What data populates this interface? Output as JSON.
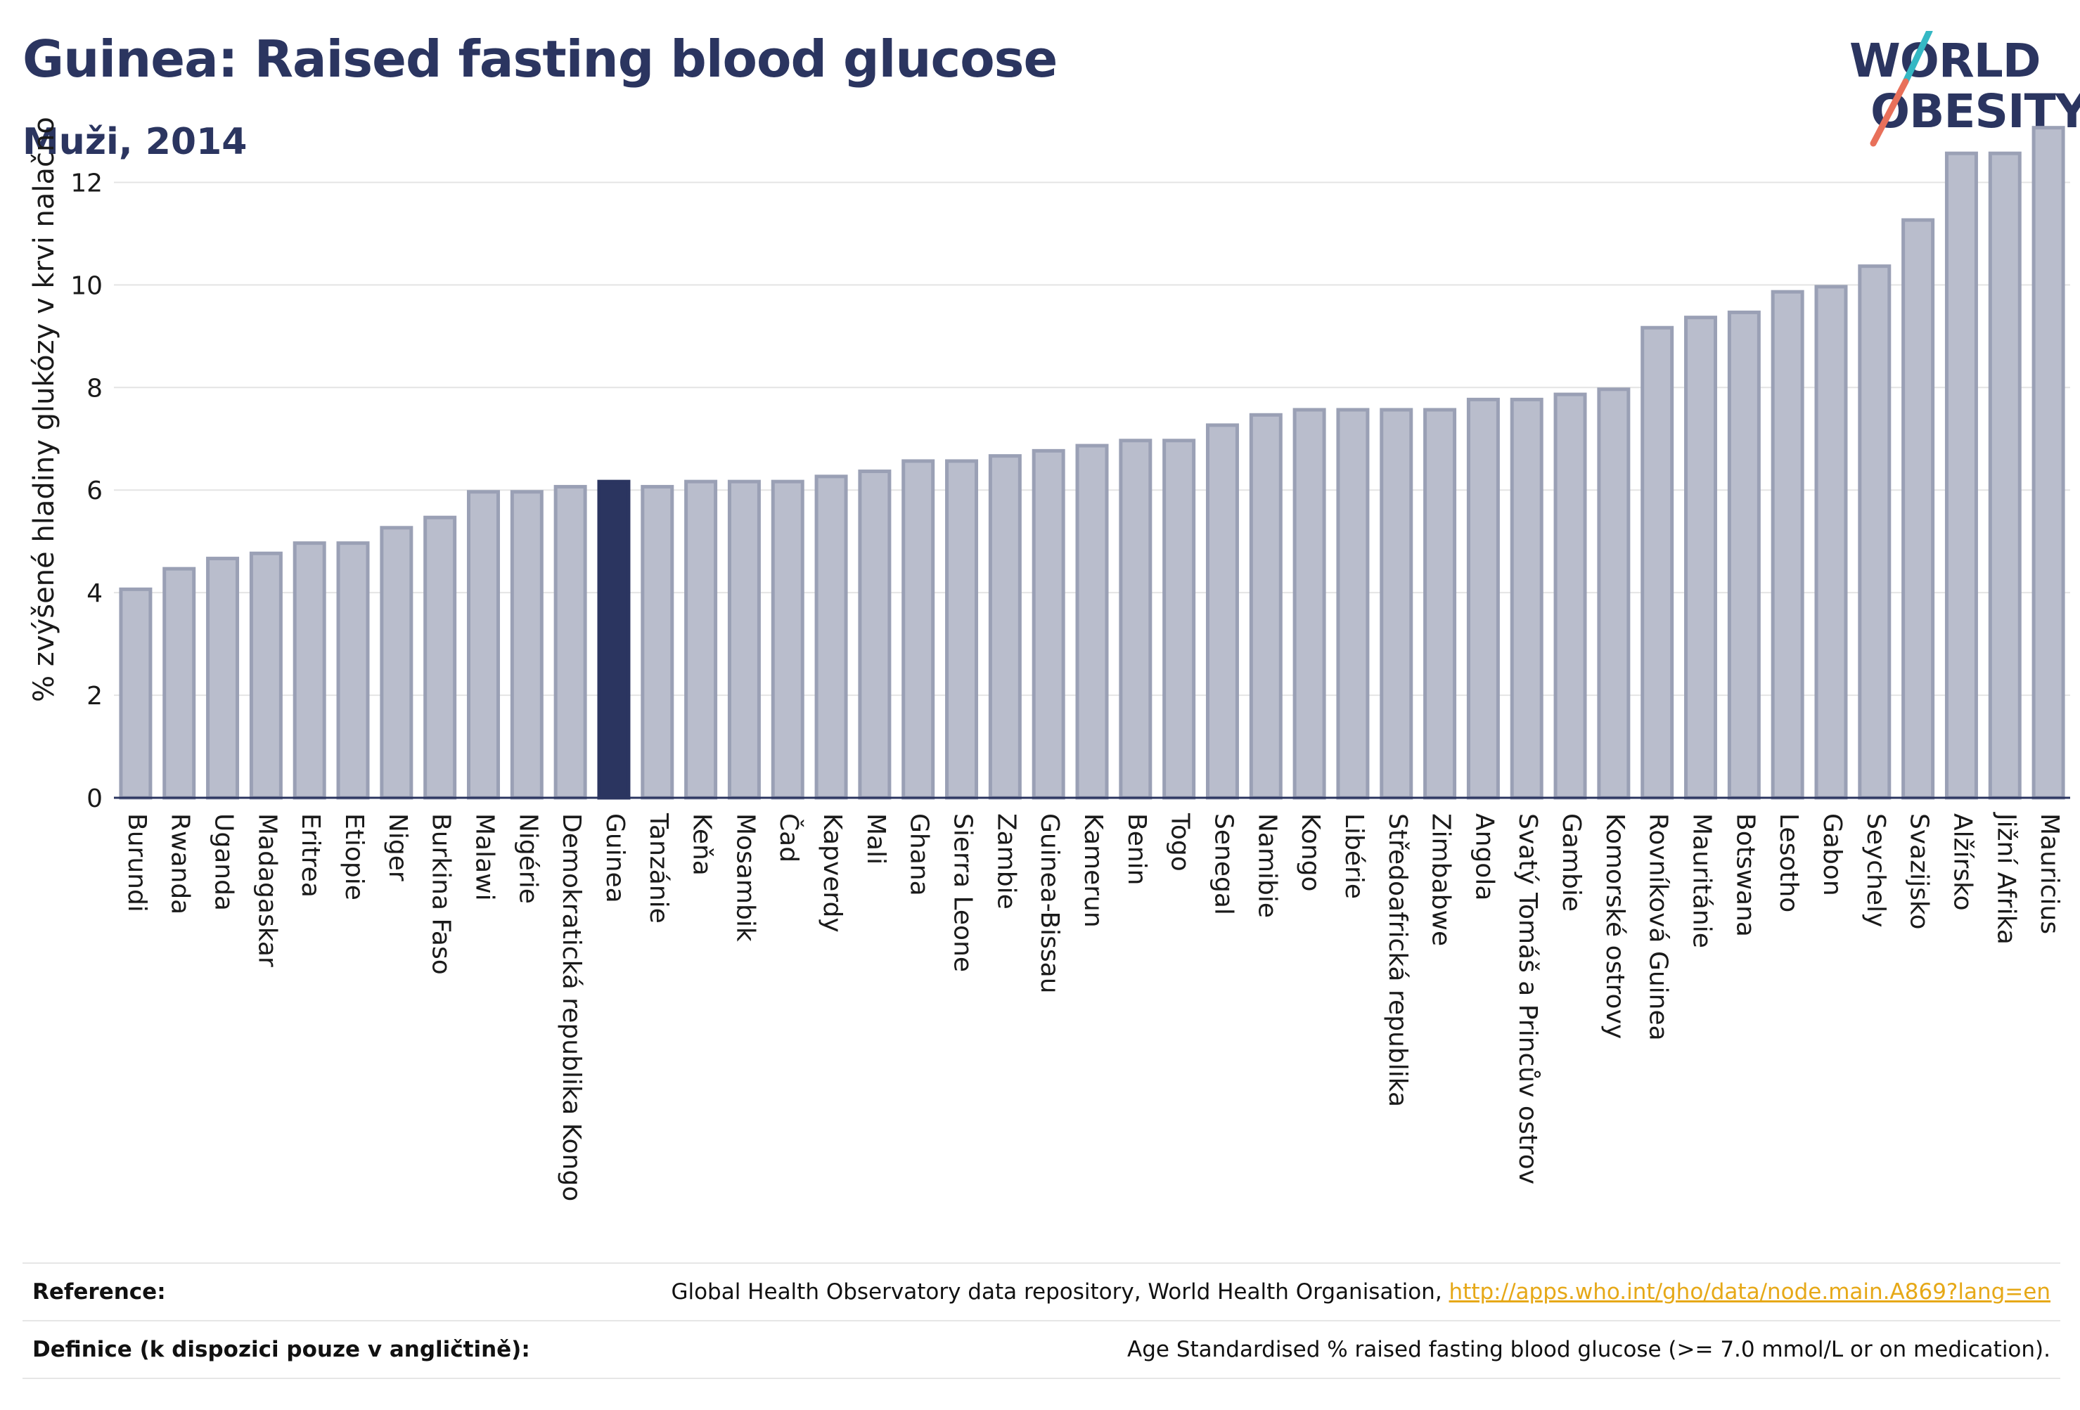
{
  "header": {
    "title": "Guinea: Raised fasting blood glucose",
    "subtitle": "Muži, 2014"
  },
  "logo": {
    "line1": "WORLD",
    "line2": "OBESITY",
    "colors": {
      "text": "#2b3560",
      "slash_top": "#35b8c4",
      "slash_bottom": "#e8705a"
    }
  },
  "chart_data": {
    "type": "bar",
    "title": "Guinea: Raised fasting blood glucose",
    "subtitle": "Muži, 2014",
    "xlabel": "",
    "ylabel": "% zvýšené hladiny glukózy v krvi nalačno",
    "ylim": [
      0,
      13.5
    ],
    "yticks": [
      0,
      2,
      4,
      6,
      8,
      10,
      12
    ],
    "grid": true,
    "highlight": "Guinea",
    "colors": {
      "bar": "#b9bdcc",
      "bar_border": "#9aa0b5",
      "highlight": "#2b3560"
    },
    "categories": [
      "Burundi",
      "Rwanda",
      "Uganda",
      "Madagaskar",
      "Eritrea",
      "Etiopie",
      "Niger",
      "Burkina Faso",
      "Malawi",
      "Nigérie",
      "Demokratická republika Kongo",
      "Guinea",
      "Tanzánie",
      "Keňa",
      "Mosambik",
      "Čad",
      "Kapverdy",
      "Mali",
      "Ghana",
      "Sierra Leone",
      "Zambie",
      "Guinea-Bissau",
      "Kamerun",
      "Benin",
      "Togo",
      "Senegal",
      "Namibie",
      "Kongo",
      "Libérie",
      "Středoafrická republika",
      "Zimbabwe",
      "Angola",
      "Svatý Tomáš a Princův ostrov",
      "Gambie",
      "Komorské ostrovy",
      "Rovníková Guinea",
      "Mauritánie",
      "Botswana",
      "Lesotho",
      "Gabon",
      "Seychely",
      "Svazijsko",
      "Alžírsko",
      "Jižní Afrika",
      "Mauricius"
    ],
    "values": [
      4.1,
      4.5,
      4.7,
      4.8,
      5.0,
      5.0,
      5.3,
      5.5,
      6.0,
      6.0,
      6.1,
      6.2,
      6.1,
      6.2,
      6.2,
      6.2,
      6.3,
      6.4,
      6.6,
      6.6,
      6.7,
      6.8,
      6.9,
      7.0,
      7.0,
      7.3,
      7.5,
      7.6,
      7.6,
      7.6,
      7.6,
      7.8,
      7.8,
      7.9,
      8.0,
      9.2,
      9.4,
      9.5,
      9.9,
      10.0,
      10.4,
      11.3,
      12.6,
      12.6,
      13.1
    ]
  },
  "footer": {
    "reference_label": "Reference:",
    "reference_text": "Global Health Observatory data repository, World Health Organisation, ",
    "reference_link": "http://apps.who.int/gho/data/node.main.A869?lang=en",
    "definition_label": "Definice (k dispozici pouze v angličtině):",
    "definition_text": "Age Standardised % raised fasting blood glucose (>= 7.0 mmol/L or on medication)."
  }
}
